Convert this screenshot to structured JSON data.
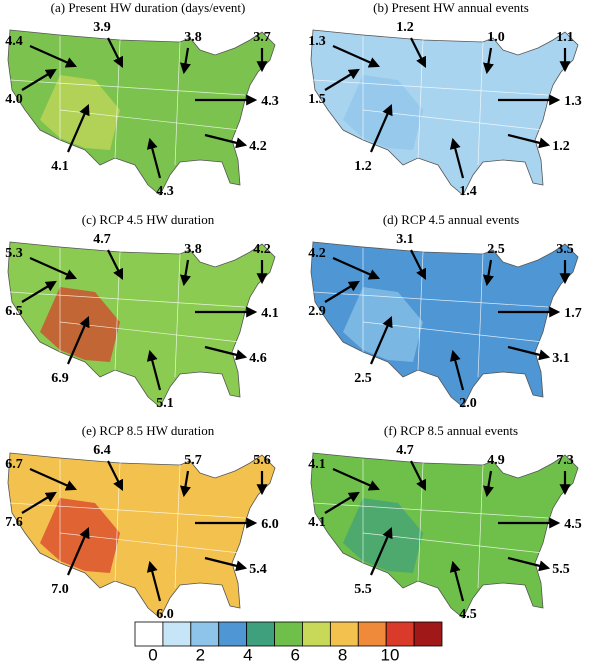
{
  "panels": [
    {
      "title": "(a) Present HW duration (days/event)",
      "labels": [
        "4.4",
        "3.9",
        "3.8",
        "3.7",
        "4.3",
        "4.0",
        "4.1",
        "4.3",
        "4.2"
      ]
    },
    {
      "title": "(b) Present HW annual events",
      "labels": [
        "1.3",
        "1.2",
        "1.0",
        "1.1",
        "1.3",
        "1.5",
        "1.2",
        "1.4",
        "1.2"
      ]
    },
    {
      "title": "(c) RCP 4.5 HW duration",
      "labels": [
        "5.3",
        "4.7",
        "3.8",
        "4.2",
        "4.1",
        "6.5",
        "6.9",
        "5.1",
        "4.6"
      ]
    },
    {
      "title": "(d) RCP 4.5 annual events",
      "labels": [
        "4.2",
        "3.1",
        "2.5",
        "3.5",
        "1.7",
        "2.9",
        "2.5",
        "2.0",
        "3.1"
      ]
    },
    {
      "title": "(e) RCP 8.5 HW duration",
      "labels": [
        "6.7",
        "6.4",
        "5.7",
        "5.6",
        "6.0",
        "7.6",
        "7.0",
        "6.0",
        "5.4"
      ]
    },
    {
      "title": "(f) RCP 8.5 annual events",
      "labels": [
        "4.1",
        "4.7",
        "4.9",
        "7.3",
        "4.5",
        "4.1",
        "5.5",
        "4.5",
        "5.5"
      ]
    }
  ],
  "colorbar": {
    "ticks": [
      0,
      2,
      4,
      6,
      8,
      10
    ],
    "colors": [
      "#ffffff",
      "#c6e6f7",
      "#8ec4ea",
      "#4f96d4",
      "#3fa07e",
      "#6ec04a",
      "#c8d95a",
      "#f2c14e",
      "#ee8a3a",
      "#d93a2a",
      "#a01818"
    ]
  }
}
